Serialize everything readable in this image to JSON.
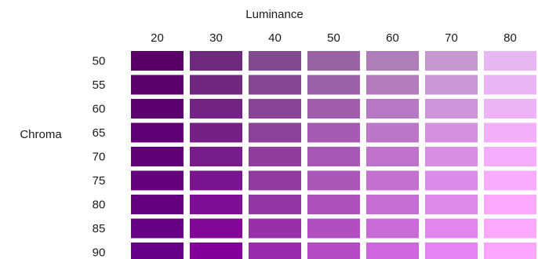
{
  "chart_data": {
    "type": "heatmap",
    "title": "",
    "xlabel": "Luminance",
    "ylabel": "Chroma",
    "x": [
      "20",
      "30",
      "40",
      "50",
      "60",
      "70",
      "80"
    ],
    "y": [
      "50",
      "55",
      "60",
      "65",
      "70",
      "75",
      "80",
      "85",
      "90"
    ],
    "cells": [
      [
        "#5a0068",
        "#6e2a7c",
        "#834a8f",
        "#9963a4",
        "#b07dbb",
        "#c897d2",
        "#e8b6f2"
      ],
      [
        "#5c006c",
        "#70277f",
        "#864792",
        "#9d61a8",
        "#b37bbe",
        "#cb95d6",
        "#ebb4f5"
      ],
      [
        "#5e0070",
        "#732383",
        "#894496",
        "#a05eac",
        "#b778c3",
        "#cf93da",
        "#eeb2f7"
      ],
      [
        "#600074",
        "#761f87",
        "#8c419a",
        "#a45bb1",
        "#bb76c8",
        "#d391df",
        "#f1b0f9"
      ],
      [
        "#620078",
        "#781b8b",
        "#8f3d9e",
        "#a758b5",
        "#bf73cc",
        "#d78ee3",
        "#f4aefb"
      ],
      [
        "#64007c",
        "#7b158f",
        "#9239a2",
        "#ab55b9",
        "#c370d1",
        "#db8be8",
        "#f7acfd"
      ],
      [
        "#650080",
        "#7e0f94",
        "#9535a6",
        "#ae51bd",
        "#c66dd5",
        "#df88ec",
        "#f9aafe"
      ],
      [
        "#670084",
        "#810798",
        "#9830aa",
        "#b24ec1",
        "#ca6ad9",
        "#e386f0",
        "#fba8ff"
      ],
      [
        "#690088",
        "#84009c",
        "#9b2bae",
        "#b54ac5",
        "#ce67de",
        "#e783f4",
        "#fda6ff"
      ]
    ]
  }
}
